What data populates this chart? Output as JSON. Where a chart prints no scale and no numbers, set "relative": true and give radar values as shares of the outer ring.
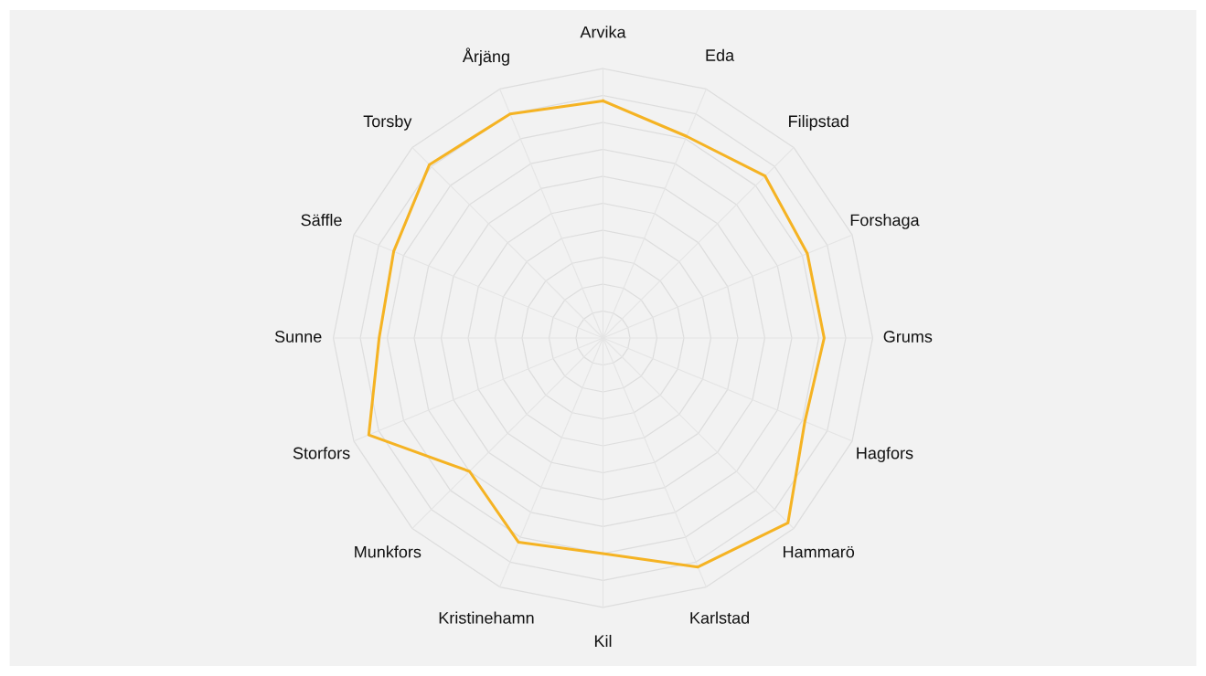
{
  "chart_data": {
    "type": "radar",
    "relative": true,
    "grid": true,
    "categories": [
      "Arvika",
      "Eda",
      "Filipstad",
      "Forshaga",
      "Grums",
      "Hagfors",
      "Hammarö",
      "Karlstad",
      "Kil",
      "Kristinehamn",
      "Munkfors",
      "Storfors",
      "Sunne",
      "Säffle",
      "Torsby",
      "Årjäng"
    ],
    "series": [
      {
        "color": "#f5b323",
        "values": [
          0.88,
          0.81,
          0.85,
          0.82,
          0.82,
          0.81,
          0.97,
          0.92,
          0.8,
          0.82,
          0.7,
          0.94,
          0.83,
          0.84,
          0.91,
          0.9
        ]
      }
    ]
  }
}
